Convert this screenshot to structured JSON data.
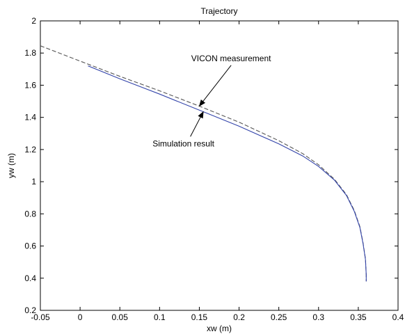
{
  "chart_data": {
    "type": "line",
    "title": "Trajectory",
    "xlabel": "xw (m)",
    "ylabel": "yw (m)",
    "xlim": [
      -0.05,
      0.4
    ],
    "ylim": [
      0.2,
      2
    ],
    "x_ticks": [
      -0.05,
      0,
      0.05,
      0.1,
      0.15,
      0.2,
      0.25,
      0.3,
      0.35,
      0.4
    ],
    "x_tick_labels": [
      "-0.05",
      "0",
      "0.05",
      "0.1",
      "0.15",
      "0.2",
      "0.25",
      "0.3",
      "0.35",
      "0.4"
    ],
    "y_ticks": [
      0.2,
      0.4,
      0.6,
      0.8,
      1,
      1.2,
      1.4,
      1.6,
      1.8,
      2
    ],
    "y_tick_labels": [
      "0.2",
      "0.4",
      "0.6",
      "0.8",
      "1",
      "1.2",
      "1.4",
      "1.6",
      "1.8",
      "2"
    ],
    "grid": false,
    "series": [
      {
        "name": "VICON measurement",
        "style": "dashed",
        "color": "#555555",
        "x": [
          -0.05,
          0,
          0.05,
          0.1,
          0.15,
          0.2,
          0.25,
          0.28,
          0.3,
          0.32,
          0.335,
          0.345,
          0.352,
          0.356,
          0.359,
          0.36,
          0.36
        ],
        "y": [
          1.845,
          1.75,
          1.655,
          1.565,
          1.47,
          1.37,
          1.255,
          1.175,
          1.105,
          1.015,
          0.92,
          0.82,
          0.72,
          0.62,
          0.52,
          0.42,
          0.38
        ]
      },
      {
        "name": "Simulation result",
        "style": "solid",
        "color": "#3344aa",
        "x": [
          0.01,
          0.05,
          0.1,
          0.15,
          0.2,
          0.25,
          0.28,
          0.3,
          0.32,
          0.335,
          0.345,
          0.352,
          0.356,
          0.359,
          0.36,
          0.36
        ],
        "y": [
          1.72,
          1.64,
          1.545,
          1.445,
          1.345,
          1.235,
          1.16,
          1.095,
          1.01,
          0.915,
          0.815,
          0.715,
          0.615,
          0.515,
          0.42,
          0.38
        ]
      }
    ],
    "annotations": [
      {
        "text": "VICON measurement",
        "text_x": 0.19,
        "text_y": 1.75,
        "arrow_to_x": 0.15,
        "arrow_to_y": 1.47
      },
      {
        "text": "Simulation result",
        "text_x": 0.13,
        "text_y": 1.22,
        "arrow_to_x": 0.155,
        "arrow_to_y": 1.435
      }
    ]
  }
}
